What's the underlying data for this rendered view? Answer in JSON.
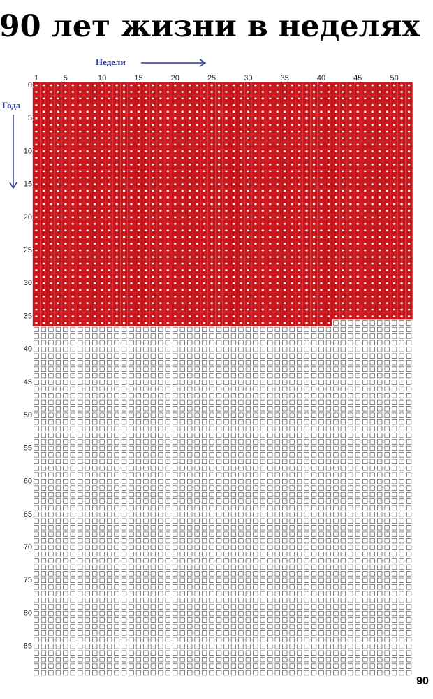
{
  "title": "90 лет жизни в неделях",
  "weeks_label": "Недели",
  "years_label": "Года",
  "week_ticks": [
    1,
    5,
    10,
    15,
    20,
    25,
    30,
    35,
    40,
    45,
    50
  ],
  "year_ticks": [
    0,
    5,
    10,
    15,
    20,
    25,
    30,
    35,
    40,
    45,
    50,
    55,
    60,
    65,
    70,
    75,
    80,
    85
  ],
  "weeks_per_year": 52,
  "years": 90,
  "filled_weeks": 1913,
  "filled_color": "#c8161d",
  "axis_label_color": "#2b3990"
}
